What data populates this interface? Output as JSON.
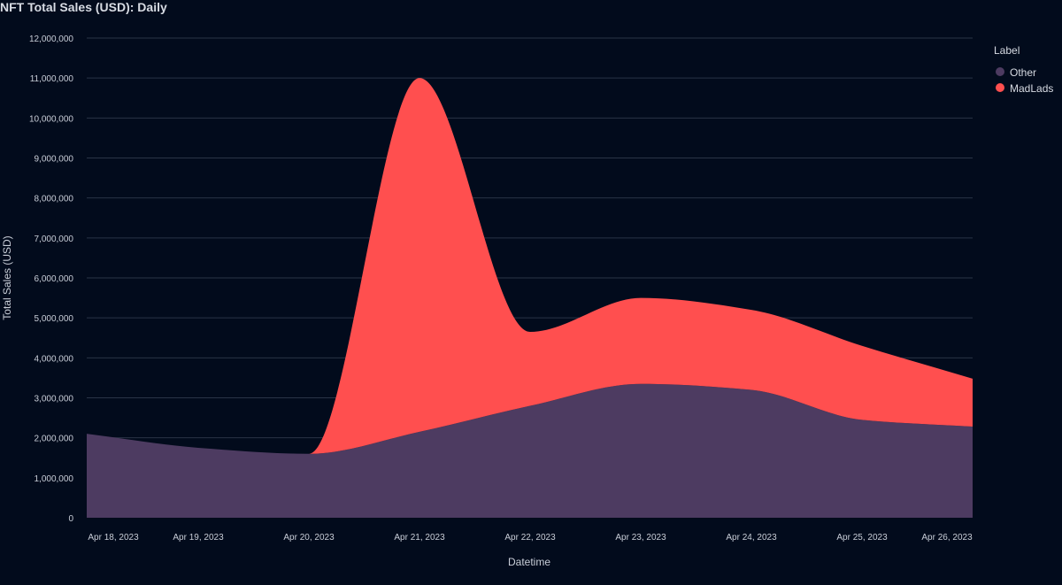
{
  "chart_data": {
    "type": "area",
    "stacked": true,
    "title": "NFT Total Sales (USD): Daily",
    "xlabel": "Datetime",
    "ylabel": "Total Sales (USD)",
    "x": [
      "2023-04-18",
      "2023-04-19",
      "2023-04-20",
      "2023-04-21",
      "2023-04-22",
      "2023-04-23",
      "2023-04-24",
      "2023-04-25",
      "2023-04-26"
    ],
    "x_tick_labels": [
      "Apr 18, 2023",
      "Apr 19, 2023",
      "Apr 20, 2023",
      "Apr 21, 2023",
      "Apr 22, 2023",
      "Apr 23, 2023",
      "Apr 24, 2023",
      "Apr 25, 2023",
      "Apr 26, 2023"
    ],
    "ylim": [
      0,
      12000000
    ],
    "y_ticks": [
      0,
      1000000,
      2000000,
      3000000,
      4000000,
      5000000,
      6000000,
      7000000,
      8000000,
      9000000,
      10000000,
      11000000,
      12000000
    ],
    "y_tick_labels": [
      "0",
      "1,000,000",
      "2,000,000",
      "3,000,000",
      "4,000,000",
      "5,000,000",
      "6,000,000",
      "7,000,000",
      "8,000,000",
      "9,000,000",
      "10,000,000",
      "11,000,000",
      "12,000,000"
    ],
    "grid": true,
    "legend": {
      "title": "Label",
      "position": "right"
    },
    "series": [
      {
        "name": "Other",
        "color": "#4d3b61",
        "values": [
          2100000,
          1750000,
          1600000,
          2150000,
          2800000,
          3350000,
          3200000,
          2450000,
          2280000
        ]
      },
      {
        "name": "MadLads",
        "color": "#ff4f4f",
        "values": [
          0,
          0,
          0,
          8850000,
          1850000,
          2150000,
          2000000,
          1850000,
          1200000
        ]
      }
    ]
  }
}
